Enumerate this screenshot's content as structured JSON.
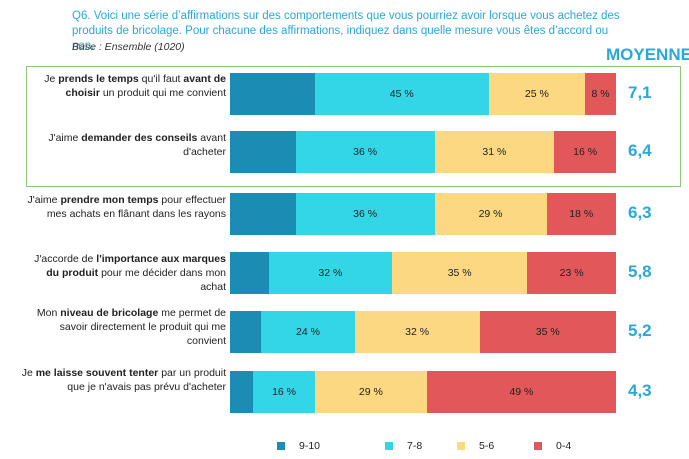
{
  "question": "Q6. Voici une série d’affirmations sur des comportements que vous pourriez avoir lorsque vous achetez des produits de bricolage. Pour chacune des affirmations, indiquez dans quelle mesure vous êtes d’accord ou non.",
  "base": "Base : Ensemble (1020)",
  "moyenne_header": "MOYENNE",
  "colors": {
    "9-10": "#1b8cb3",
    "7-8": "#33d6e6",
    "5-6": "#fcd882",
    "0-4": "#e2585a",
    "highlight_border": "#8cc47a"
  },
  "chart_data": {
    "type": "bar",
    "orientation": "horizontal",
    "stacked": true,
    "categories": [
      "Je prends le temps qu'il faut avant de choisir un produit qui me convient",
      "J'aime demander des conseils avant d'acheter",
      "J'aime prendre mon temps pour effectuer mes achats en flânant dans les rayons",
      "J'accorde de l'importance aux marques du produit pour me décider dans mon achat",
      "Mon niveau de bricolage me permet de savoir directement le produit qui me convient",
      "Je me laisse souvent tenter par un produit que je n'avais pas prévu d'acheter"
    ],
    "series": [
      {
        "name": "9-10",
        "values": [
          22,
          17,
          17,
          10,
          8,
          6
        ]
      },
      {
        "name": "7-8",
        "values": [
          45,
          36,
          36,
          32,
          24,
          16
        ]
      },
      {
        "name": "5-6",
        "values": [
          25,
          31,
          29,
          35,
          32,
          29
        ]
      },
      {
        "name": "0-4",
        "values": [
          8,
          16,
          18,
          23,
          35,
          49
        ]
      }
    ],
    "data_labels": [
      [
        "",
        "45 %",
        "25 %",
        "8 %"
      ],
      [
        "",
        "36 %",
        "31 %",
        "16 %"
      ],
      [
        "",
        "36 %",
        "29 %",
        "18 %"
      ],
      [
        "",
        "32 %",
        "35 %",
        "23 %"
      ],
      [
        "",
        "24 %",
        "32 %",
        "35 %"
      ],
      [
        "",
        "16 %",
        "29 %",
        "49 %"
      ]
    ],
    "averages": [
      "7,1",
      "6,4",
      "6,3",
      "5,8",
      "5,2",
      "4,3"
    ],
    "legend": {
      "position": "bottom",
      "items": [
        "9-10",
        "7-8",
        "5-6",
        "0-4"
      ]
    },
    "highlighted_rows": [
      0,
      1
    ],
    "grid": false
  },
  "rows": [
    {
      "label_parts": [
        {
          "t": "Je ",
          "b": false
        },
        {
          "t": "prends le temps",
          "b": true
        },
        {
          "t": " qu'il faut ",
          "b": false
        },
        {
          "t": "avant de choisir",
          "b": true
        },
        {
          "t": " un produit qui me convient",
          "b": false
        }
      ]
    },
    {
      "label_parts": [
        {
          "t": "J'aime ",
          "b": false
        },
        {
          "t": "demander des conseils",
          "b": true
        },
        {
          "t": " avant d'acheter",
          "b": false
        }
      ]
    },
    {
      "label_parts": [
        {
          "t": "J'aime ",
          "b": false
        },
        {
          "t": "prendre mon temps",
          "b": true
        },
        {
          "t": " pour effectuer mes achats en flânant dans les rayons",
          "b": false
        }
      ]
    },
    {
      "label_parts": [
        {
          "t": "J'accorde de ",
          "b": false
        },
        {
          "t": "l'importance aux marques du produit",
          "b": true
        },
        {
          "t": " pour me décider dans mon achat",
          "b": false
        }
      ]
    },
    {
      "label_parts": [
        {
          "t": "Mon ",
          "b": false
        },
        {
          "t": "niveau de bricolage",
          "b": true
        },
        {
          "t": " me permet de savoir directement le produit qui me convient",
          "b": false
        }
      ]
    },
    {
      "label_parts": [
        {
          "t": "Je ",
          "b": false
        },
        {
          "t": "me laisse souvent tenter",
          "b": true
        },
        {
          "t": " par un produit que je n'avais pas prévu d'acheter",
          "b": false
        }
      ]
    }
  ]
}
